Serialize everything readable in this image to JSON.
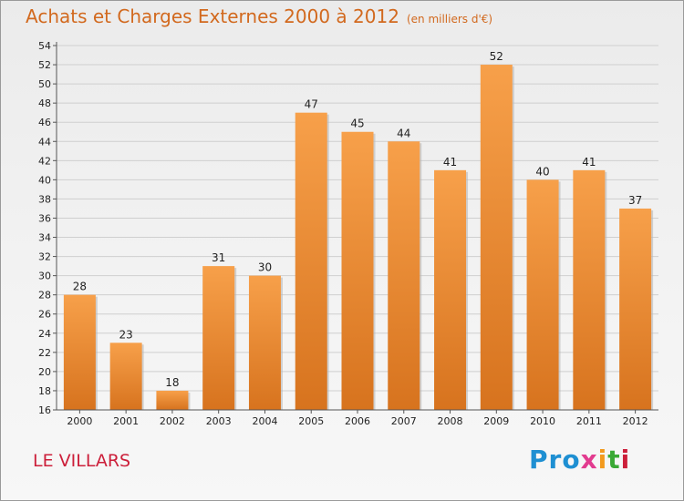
{
  "header": {
    "title": "Achats et Charges Externes 2000 à 2012",
    "unit": "(en milliers d'€)"
  },
  "footer": {
    "place": "LE VILLARS",
    "logo_parts": [
      "Pro",
      "x",
      "i",
      "t",
      "i"
    ]
  },
  "colors": {
    "bar_top": "#f7a04a",
    "bar_bottom": "#d7731e",
    "title": "#d2691e",
    "place": "#cc1f3a"
  },
  "chart_data": {
    "type": "bar",
    "title": "Achats et Charges Externes 2000 à 2012",
    "subtitle": "(en milliers d'€)",
    "categories": [
      "2000",
      "2001",
      "2002",
      "2003",
      "2004",
      "2005",
      "2006",
      "2007",
      "2008",
      "2009",
      "2010",
      "2011",
      "2012"
    ],
    "values": [
      28,
      23,
      18,
      31,
      30,
      47,
      45,
      44,
      41,
      52,
      40,
      41,
      37
    ],
    "ylim": [
      16,
      54
    ],
    "yticks": [
      16,
      18,
      20,
      22,
      24,
      26,
      28,
      30,
      32,
      34,
      36,
      38,
      40,
      42,
      44,
      46,
      48,
      50,
      52,
      54
    ],
    "grid": true,
    "legend": "none",
    "data_labels": true
  }
}
